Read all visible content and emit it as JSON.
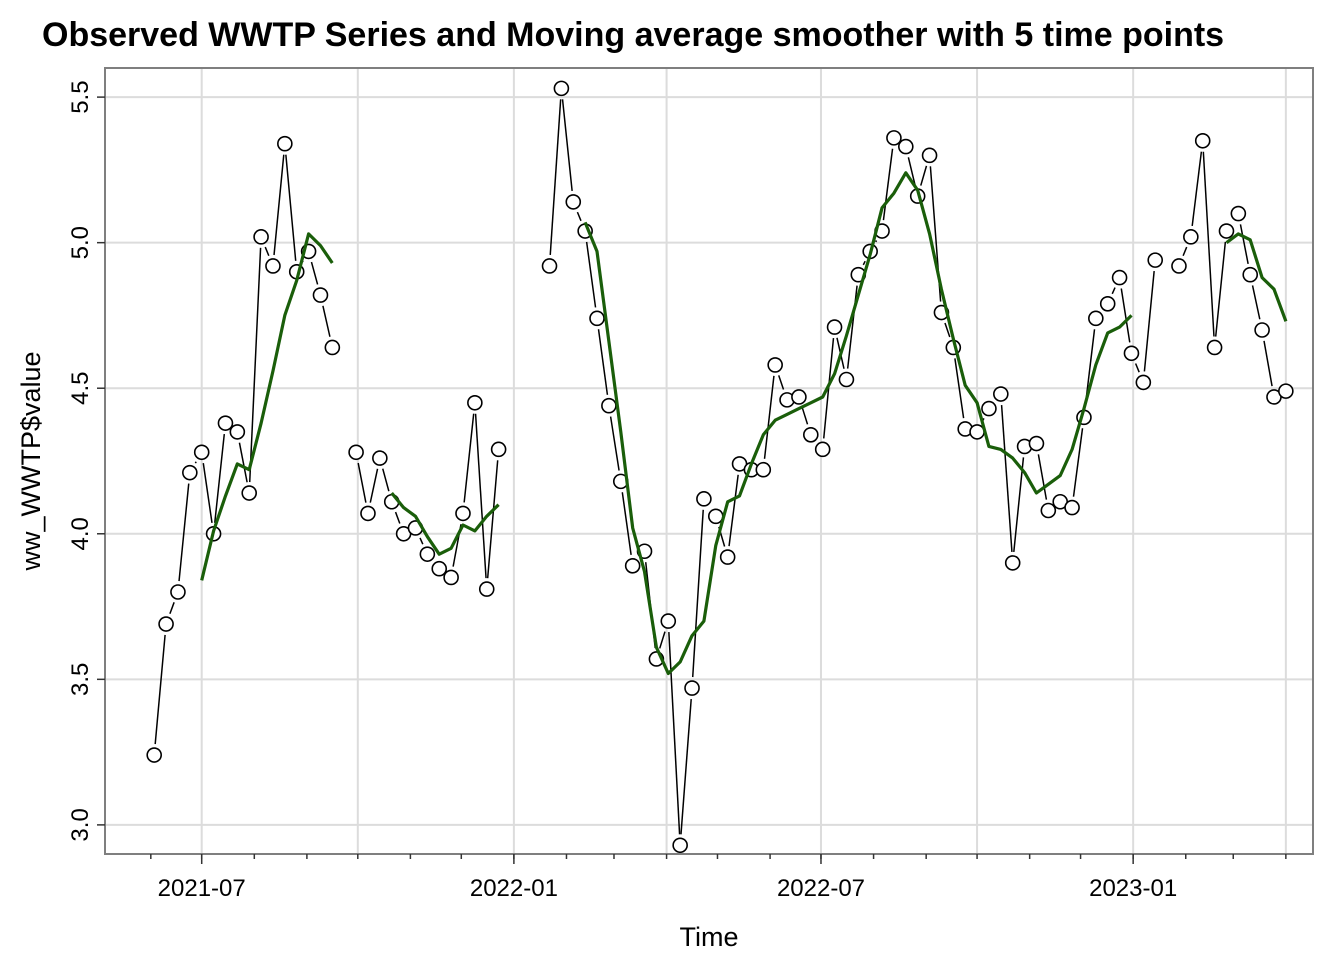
{
  "chart_data": {
    "type": "line",
    "title": "Observed WWTP Series and Moving average smoother with 5 time points",
    "xlabel": "Time",
    "ylabel": "ww_WWTP$value",
    "grid": true,
    "ylim": [
      2.9,
      5.6
    ],
    "xlim": [
      "2021-05-05",
      "2023-04-17"
    ],
    "x_ticks": [
      "2021-07",
      "2022-01",
      "2022-07",
      "2023-01"
    ],
    "x_tick_dates": [
      "2021-07-01",
      "2022-01-01",
      "2022-07-01",
      "2023-01-01"
    ],
    "y_ticks": [
      "3.0",
      "3.5",
      "4.0",
      "4.5",
      "5.0",
      "5.5"
    ],
    "colors": {
      "observed": "#000000",
      "smoother": "#1a5e0a",
      "grid": "#dcdcdc",
      "frame": "#7f7f7f"
    },
    "series": [
      {
        "style": "points-and-lines",
        "segments": [
          [
            [
              "2021-06-03",
              3.24
            ],
            [
              "2021-06-10",
              3.69
            ],
            [
              "2021-06-17",
              3.8
            ],
            [
              "2021-06-24",
              4.21
            ],
            [
              "2021-07-01",
              4.28
            ],
            [
              "2021-07-08",
              4.0
            ],
            [
              "2021-07-15",
              4.38
            ],
            [
              "2021-07-22",
              4.35
            ],
            [
              "2021-07-29",
              4.14
            ],
            [
              "2021-08-05",
              5.02
            ],
            [
              "2021-08-12",
              4.92
            ],
            [
              "2021-08-19",
              5.34
            ],
            [
              "2021-08-26",
              4.9
            ],
            [
              "2021-09-02",
              4.97
            ],
            [
              "2021-09-09",
              4.82
            ],
            [
              "2021-09-16",
              4.64
            ]
          ],
          [
            [
              "2021-09-30",
              4.28
            ],
            [
              "2021-10-07",
              4.07
            ],
            [
              "2021-10-14",
              4.26
            ],
            [
              "2021-10-21",
              4.11
            ],
            [
              "2021-10-28",
              4.0
            ],
            [
              "2021-11-04",
              4.02
            ],
            [
              "2021-11-11",
              3.93
            ],
            [
              "2021-11-18",
              3.88
            ],
            [
              "2021-11-25",
              3.85
            ],
            [
              "2021-12-02",
              4.07
            ],
            [
              "2021-12-09",
              4.45
            ],
            [
              "2021-12-16",
              3.81
            ],
            [
              "2021-12-23",
              4.29
            ]
          ],
          [
            [
              "2022-01-22",
              4.92
            ],
            [
              "2022-01-29",
              5.53
            ],
            [
              "2022-02-05",
              5.14
            ],
            [
              "2022-02-12",
              5.04
            ],
            [
              "2022-02-19",
              4.74
            ],
            [
              "2022-02-26",
              4.44
            ],
            [
              "2022-03-05",
              4.18
            ],
            [
              "2022-03-12",
              3.89
            ],
            [
              "2022-03-19",
              3.94
            ],
            [
              "2022-03-26",
              3.57
            ],
            [
              "2022-04-02",
              3.7
            ],
            [
              "2022-04-09",
              2.93
            ],
            [
              "2022-04-16",
              3.47
            ],
            [
              "2022-04-23",
              4.12
            ],
            [
              "2022-04-30",
              4.06
            ],
            [
              "2022-05-07",
              3.92
            ],
            [
              "2022-05-14",
              4.24
            ],
            [
              "2022-05-21",
              4.22
            ],
            [
              "2022-05-28",
              4.22
            ],
            [
              "2022-06-04",
              4.58
            ],
            [
              "2022-06-11",
              4.46
            ],
            [
              "2022-06-18",
              4.47
            ],
            [
              "2022-06-25",
              4.34
            ],
            [
              "2022-07-02",
              4.29
            ],
            [
              "2022-07-09",
              4.71
            ],
            [
              "2022-07-16",
              4.53
            ],
            [
              "2022-07-23",
              4.89
            ],
            [
              "2022-07-30",
              4.97
            ],
            [
              "2022-08-06",
              5.04
            ],
            [
              "2022-08-13",
              5.36
            ],
            [
              "2022-08-20",
              5.33
            ],
            [
              "2022-08-27",
              5.16
            ],
            [
              "2022-09-03",
              5.3
            ],
            [
              "2022-09-10",
              4.76
            ],
            [
              "2022-09-17",
              4.64
            ],
            [
              "2022-09-24",
              4.36
            ],
            [
              "2022-10-01",
              4.35
            ],
            [
              "2022-10-08",
              4.43
            ],
            [
              "2022-10-15",
              4.48
            ],
            [
              "2022-10-22",
              3.9
            ],
            [
              "2022-10-29",
              4.3
            ],
            [
              "2022-11-05",
              4.31
            ],
            [
              "2022-11-12",
              4.08
            ],
            [
              "2022-11-19",
              4.11
            ],
            [
              "2022-11-26",
              4.09
            ],
            [
              "2022-12-03",
              4.4
            ],
            [
              "2022-12-10",
              4.74
            ],
            [
              "2022-12-17",
              4.79
            ],
            [
              "2022-12-24",
              4.88
            ],
            [
              "2022-12-31",
              4.62
            ],
            [
              "2023-01-07",
              4.52
            ],
            [
              "2023-01-14",
              4.94
            ]
          ],
          [
            [
              "2023-01-28",
              4.92
            ],
            [
              "2023-02-04",
              5.02
            ],
            [
              "2023-02-11",
              5.35
            ],
            [
              "2023-02-18",
              4.64
            ],
            [
              "2023-02-25",
              5.04
            ],
            [
              "2023-03-04",
              5.1
            ],
            [
              "2023-03-11",
              4.89
            ],
            [
              "2023-03-18",
              4.7
            ],
            [
              "2023-03-25",
              4.47
            ],
            [
              "2023-04-01",
              4.49
            ]
          ]
        ]
      },
      {
        "style": "line",
        "segments": [
          [
            [
              "2021-07-01",
              3.84
            ],
            [
              "2021-07-08",
              4.01
            ],
            [
              "2021-07-15",
              4.13
            ],
            [
              "2021-07-22",
              4.24
            ],
            [
              "2021-07-29",
              4.22
            ],
            [
              "2021-08-05",
              4.38
            ],
            [
              "2021-08-12",
              4.56
            ],
            [
              "2021-08-19",
              4.75
            ],
            [
              "2021-08-26",
              4.87
            ],
            [
              "2021-09-02",
              5.03
            ],
            [
              "2021-09-09",
              4.99
            ],
            [
              "2021-09-16",
              4.93
            ]
          ],
          [
            [
              "2021-10-21",
              4.14
            ],
            [
              "2021-10-28",
              4.09
            ],
            [
              "2021-11-04",
              4.06
            ],
            [
              "2021-11-11",
              3.99
            ],
            [
              "2021-11-18",
              3.93
            ],
            [
              "2021-11-25",
              3.95
            ],
            [
              "2021-12-02",
              4.03
            ],
            [
              "2021-12-09",
              4.01
            ],
            [
              "2021-12-16",
              4.06
            ],
            [
              "2021-12-23",
              4.1
            ]
          ],
          [
            [
              "2022-02-12",
              5.07
            ],
            [
              "2022-02-19",
              4.97
            ],
            [
              "2022-02-26",
              4.66
            ],
            [
              "2022-03-05",
              4.35
            ],
            [
              "2022-03-12",
              4.02
            ],
            [
              "2022-03-19",
              3.87
            ],
            [
              "2022-03-26",
              3.61
            ],
            [
              "2022-04-02",
              3.52
            ],
            [
              "2022-04-09",
              3.56
            ],
            [
              "2022-04-16",
              3.65
            ],
            [
              "2022-04-23",
              3.7
            ],
            [
              "2022-04-30",
              3.96
            ],
            [
              "2022-05-07",
              4.11
            ],
            [
              "2022-05-14",
              4.13
            ],
            [
              "2022-05-21",
              4.24
            ],
            [
              "2022-05-28",
              4.34
            ],
            [
              "2022-06-04",
              4.39
            ],
            [
              "2022-06-11",
              4.41
            ],
            [
              "2022-06-18",
              4.43
            ],
            [
              "2022-06-25",
              4.45
            ],
            [
              "2022-07-02",
              4.47
            ],
            [
              "2022-07-09",
              4.55
            ],
            [
              "2022-07-16",
              4.68
            ],
            [
              "2022-07-23",
              4.82
            ],
            [
              "2022-07-30",
              4.96
            ],
            [
              "2022-08-06",
              5.12
            ],
            [
              "2022-08-13",
              5.17
            ],
            [
              "2022-08-20",
              5.24
            ],
            [
              "2022-08-27",
              5.18
            ],
            [
              "2022-09-03",
              5.03
            ],
            [
              "2022-09-10",
              4.84
            ],
            [
              "2022-09-17",
              4.67
            ],
            [
              "2022-09-24",
              4.51
            ],
            [
              "2022-10-01",
              4.45
            ],
            [
              "2022-10-08",
              4.3
            ],
            [
              "2022-10-15",
              4.29
            ],
            [
              "2022-10-22",
              4.26
            ],
            [
              "2022-10-29",
              4.21
            ],
            [
              "2022-11-05",
              4.14
            ],
            [
              "2022-11-12",
              4.17
            ],
            [
              "2022-11-19",
              4.2
            ],
            [
              "2022-11-26",
              4.29
            ],
            [
              "2022-12-03",
              4.43
            ],
            [
              "2022-12-10",
              4.58
            ],
            [
              "2022-12-17",
              4.69
            ],
            [
              "2022-12-24",
              4.71
            ],
            [
              "2022-12-31",
              4.75
            ]
          ],
          [
            [
              "2023-02-25",
              5.0
            ],
            [
              "2023-03-04",
              5.03
            ],
            [
              "2023-03-11",
              5.01
            ],
            [
              "2023-03-18",
              4.88
            ],
            [
              "2023-03-25",
              4.84
            ],
            [
              "2023-04-01",
              4.73
            ]
          ]
        ]
      }
    ]
  }
}
